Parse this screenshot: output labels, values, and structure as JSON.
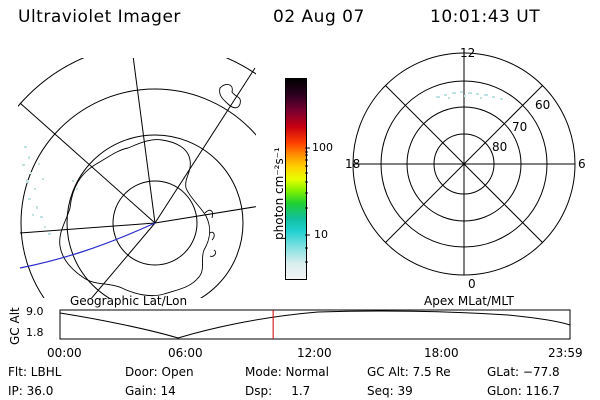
{
  "header": {
    "instrument": "Ultraviolet Imager",
    "date": "02 Aug 07",
    "time": "10:01:43 UT"
  },
  "colorbar": {
    "unit_label": "photon cm⁻²s⁻¹",
    "ticks": [
      "100",
      "10"
    ]
  },
  "right_plot": {
    "mlt_labels": [
      "12",
      "18",
      "6",
      "0"
    ],
    "lat_labels": [
      "60",
      "70",
      "80"
    ]
  },
  "timeline": {
    "left_title": "Geographic Lat/Lon",
    "right_title": "Apex MLat/MLT",
    "axis_label": "GC Alt",
    "y_ticks": [
      "9.0",
      "1.8"
    ],
    "x_ticks": [
      "00:00",
      "06:00",
      "12:00",
      "18:00",
      "23:59"
    ],
    "current_time_fraction": 0.4179
  },
  "footer": {
    "row1": [
      {
        "key": "filter",
        "text": "Flt: LBHL"
      },
      {
        "key": "door",
        "text": "Door: Open"
      },
      {
        "key": "mode",
        "text": "Mode: Normal"
      },
      {
        "key": "gcalt",
        "text": "GC Alt: 7.5 Re"
      },
      {
        "key": "glat",
        "text": "GLat: −77.8"
      }
    ],
    "row2": [
      {
        "key": "ip",
        "text": "IP: 36.0"
      },
      {
        "key": "gain",
        "text": "Gain: 14"
      },
      {
        "key": "dsp",
        "text": "Dsp:     1.7"
      },
      {
        "key": "seq",
        "text": "Seq: 39"
      },
      {
        "key": "glon",
        "text": "GLon: 116.7"
      }
    ]
  },
  "colors": {
    "orbit_track": "#2a2acc",
    "time_marker": "#cc0000",
    "aurora": "#bfe3e3"
  }
}
